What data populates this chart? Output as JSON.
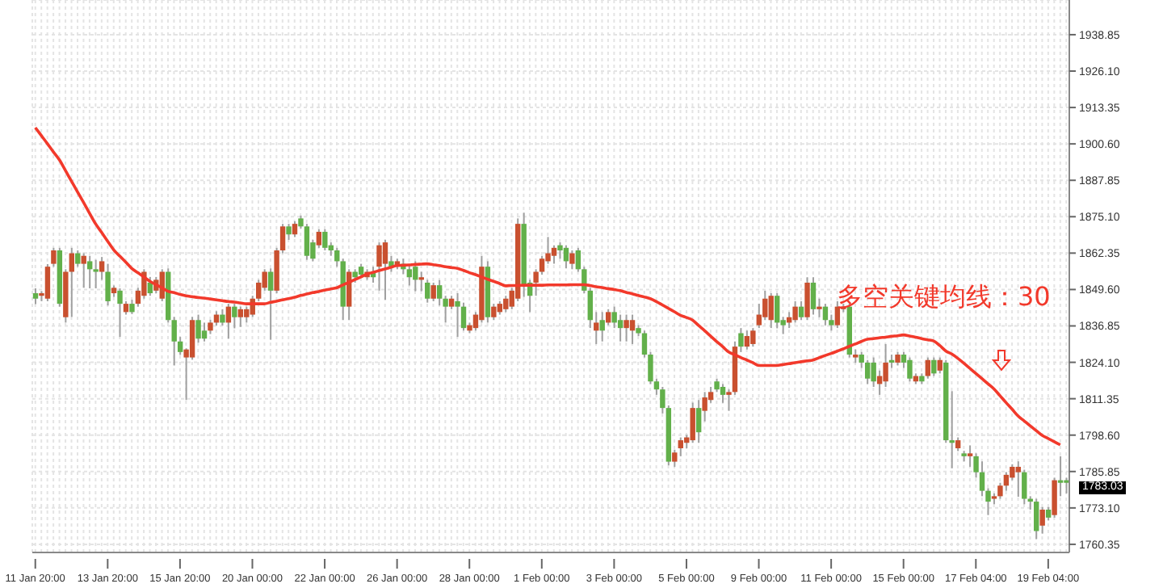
{
  "chart_data": {
    "type": "candlestick",
    "categories": [
      "11 Jan 20:00",
      null,
      null,
      null,
      null,
      null,
      null,
      null,
      null,
      null,
      null,
      null,
      "13 Jan 20:00",
      null,
      null,
      null,
      null,
      null,
      null,
      null,
      null,
      null,
      null,
      null,
      "15 Jan 20:00",
      null,
      null,
      null,
      null,
      null,
      null,
      null,
      null,
      null,
      null,
      null,
      "20 Jan 00:00",
      null,
      null,
      null,
      null,
      null,
      null,
      null,
      null,
      null,
      null,
      null,
      "22 Jan 00:00",
      null,
      null,
      null,
      null,
      null,
      null,
      null,
      null,
      null,
      null,
      null,
      "26 Jan 00:00",
      null,
      null,
      null,
      null,
      null,
      null,
      null,
      null,
      null,
      null,
      null,
      "28 Jan 00:00",
      null,
      null,
      null,
      null,
      null,
      null,
      null,
      null,
      null,
      null,
      null,
      "1 Feb 00:00",
      null,
      null,
      null,
      null,
      null,
      null,
      null,
      null,
      null,
      null,
      null,
      "3 Feb 00:00",
      null,
      null,
      null,
      null,
      null,
      null,
      null,
      null,
      null,
      null,
      null,
      "5 Feb 00:00",
      null,
      null,
      null,
      null,
      null,
      null,
      null,
      null,
      null,
      null,
      null,
      "9 Feb 00:00",
      null,
      null,
      null,
      null,
      null,
      null,
      null,
      null,
      null,
      null,
      null,
      "11 Feb 00:00",
      null,
      null,
      null,
      null,
      null,
      null,
      null,
      null,
      null,
      null,
      null,
      "15 Feb 00:00",
      null,
      null,
      null,
      null,
      null,
      null,
      null,
      null,
      null,
      null,
      null,
      "17 Feb 04:00",
      null,
      null,
      null,
      null,
      null,
      null,
      null,
      null,
      null,
      null,
      null,
      "19 Feb 04:00",
      null,
      null,
      null
    ],
    "ohlc": [
      [
        1848.3,
        1850,
        1844.5,
        1846.4
      ],
      [
        1847.4,
        1849,
        1845.5,
        1848.3
      ],
      [
        1846.4,
        1858.5,
        1845.5,
        1857.6
      ],
      [
        1858.6,
        1864.2,
        1857.6,
        1863.3
      ],
      [
        1863.3,
        1864.2,
        1843.6,
        1844.6
      ],
      [
        1839.9,
        1856.7,
        1838,
        1855.8
      ],
      [
        1855.8,
        1864.2,
        1840,
        1862.3
      ],
      [
        1862.3,
        1863.3,
        1857.6,
        1858.6
      ],
      [
        1858.6,
        1862.3,
        1850.2,
        1861.4
      ],
      [
        1859.5,
        1861.4,
        1850,
        1856.7
      ],
      [
        1856.7,
        1860,
        1850,
        1855.8
      ],
      [
        1855.8,
        1861,
        1853,
        1859.5
      ],
      [
        1855.8,
        1858.6,
        1844,
        1845.5
      ],
      [
        1848.3,
        1851,
        1847,
        1850.2
      ],
      [
        1849.2,
        1850,
        1833,
        1844.6
      ],
      [
        1841.7,
        1845.5,
        1840.8,
        1844.6
      ],
      [
        1844.6,
        1846,
        1841,
        1841.7
      ],
      [
        1844.6,
        1850.2,
        1843.6,
        1849.2
      ],
      [
        1847.4,
        1856.7,
        1846.4,
        1855.8
      ],
      [
        1852,
        1854,
        1847.4,
        1848.3
      ],
      [
        1849.2,
        1854,
        1848.3,
        1853
      ],
      [
        1846.4,
        1856.7,
        1845.5,
        1855.8
      ],
      [
        1855.8,
        1857,
        1838,
        1838.9
      ],
      [
        1838.9,
        1840,
        1823,
        1831.4
      ],
      [
        1831.4,
        1833,
        1826.7,
        1827.7
      ],
      [
        1825.8,
        1829,
        1810.9,
        1828.6
      ],
      [
        1825.8,
        1840,
        1825,
        1838.9
      ],
      [
        1838.9,
        1840.8,
        1831,
        1832.4
      ],
      [
        1835.2,
        1838,
        1831.4,
        1832.4
      ],
      [
        1835.2,
        1839,
        1834,
        1838
      ],
      [
        1838,
        1842,
        1837,
        1840.8
      ],
      [
        1840.8,
        1842.7,
        1837,
        1838
      ],
      [
        1838,
        1844.6,
        1832.4,
        1843.6
      ],
      [
        1843.6,
        1844.6,
        1836,
        1839.9
      ],
      [
        1839.9,
        1843.6,
        1836.5,
        1842.7
      ],
      [
        1839.9,
        1843.6,
        1838,
        1842.7
      ],
      [
        1840.8,
        1847.4,
        1840,
        1846.4
      ],
      [
        1846.4,
        1853,
        1845.5,
        1852
      ],
      [
        1850.2,
        1856.7,
        1849.2,
        1855.8
      ],
      [
        1855.8,
        1857,
        1832,
        1849.2
      ],
      [
        1849.2,
        1864.2,
        1848.3,
        1863.3
      ],
      [
        1863.3,
        1872.6,
        1862.3,
        1871.7
      ],
      [
        1871.7,
        1872.6,
        1867,
        1868.9
      ],
      [
        1868.9,
        1873.5,
        1868,
        1872.6
      ],
      [
        1874.5,
        1875.5,
        1871,
        1871.7
      ],
      [
        1871.7,
        1872.6,
        1860,
        1861.4
      ],
      [
        1866.1,
        1867,
        1859.5,
        1860.4
      ],
      [
        1865.1,
        1870.7,
        1864.2,
        1869.8
      ],
      [
        1869.8,
        1870.7,
        1863.3,
        1864.2
      ],
      [
        1865.1,
        1866.1,
        1861.4,
        1863.3
      ],
      [
        1863.3,
        1864.2,
        1857.6,
        1859.5
      ],
      [
        1859.5,
        1860.4,
        1838.9,
        1843.6
      ],
      [
        1843.6,
        1856.7,
        1838.9,
        1855.8
      ],
      [
        1855.8,
        1856.7,
        1852,
        1853.9
      ],
      [
        1857.6,
        1858.6,
        1853.9,
        1854.8
      ],
      [
        1853.9,
        1856.7,
        1853,
        1855.8
      ],
      [
        1855.8,
        1857.6,
        1852,
        1853.9
      ],
      [
        1857.6,
        1866.1,
        1849.2,
        1865.1
      ],
      [
        1858.6,
        1867,
        1846,
        1866.1
      ],
      [
        1859.5,
        1861.4,
        1855.8,
        1857.6
      ],
      [
        1857.6,
        1860.4,
        1856.7,
        1859.5
      ],
      [
        1858.6,
        1860.4,
        1855,
        1856.7
      ],
      [
        1856.7,
        1858,
        1851,
        1853.9
      ],
      [
        1857.6,
        1859.5,
        1849,
        1853
      ],
      [
        1853,
        1855.8,
        1849,
        1853.9
      ],
      [
        1852,
        1853,
        1845,
        1846.4
      ],
      [
        1846.4,
        1852,
        1845.5,
        1851.1
      ],
      [
        1851.1,
        1852.9,
        1844,
        1846.4
      ],
      [
        1846.4,
        1847.4,
        1838,
        1843.6
      ],
      [
        1843.6,
        1847.4,
        1842.7,
        1846.4
      ],
      [
        1845.5,
        1848.3,
        1833,
        1843.6
      ],
      [
        1843.6,
        1845,
        1835.2,
        1836.1
      ],
      [
        1835.2,
        1838,
        1834.3,
        1837.1
      ],
      [
        1836.1,
        1841.7,
        1835.2,
        1840.8
      ],
      [
        1838.9,
        1861.4,
        1838,
        1857.6
      ],
      [
        1857.6,
        1859.5,
        1838,
        1839.9
      ],
      [
        1839.9,
        1844.6,
        1838.9,
        1843.6
      ],
      [
        1841.7,
        1845.5,
        1840.8,
        1844.6
      ],
      [
        1842.7,
        1847.4,
        1841.7,
        1846.4
      ],
      [
        1843.6,
        1850.2,
        1842.7,
        1849.2
      ],
      [
        1846.4,
        1874.5,
        1845.5,
        1872.6
      ],
      [
        1872.6,
        1876.5,
        1847,
        1851.1
      ],
      [
        1852,
        1853,
        1841.7,
        1847.4
      ],
      [
        1852,
        1856.7,
        1847.4,
        1855.8
      ],
      [
        1855.8,
        1861.4,
        1854.8,
        1860.4
      ],
      [
        1859.5,
        1868,
        1858.6,
        1862.3
      ],
      [
        1861.4,
        1865.1,
        1858.6,
        1864.2
      ],
      [
        1865.1,
        1866.1,
        1860.4,
        1863.3
      ],
      [
        1864.2,
        1865.1,
        1857,
        1859.5
      ],
      [
        1858.6,
        1863.3,
        1856.7,
        1862.3
      ],
      [
        1863.3,
        1864.2,
        1855.8,
        1856.7
      ],
      [
        1856.7,
        1857.6,
        1848.3,
        1849.2
      ],
      [
        1849.2,
        1850.2,
        1836.1,
        1838.9
      ],
      [
        1835.2,
        1841.7,
        1830.5,
        1838
      ],
      [
        1838.9,
        1841.7,
        1831.4,
        1835.2
      ],
      [
        1838,
        1842.7,
        1837.1,
        1841.7
      ],
      [
        1841.7,
        1843.6,
        1836.1,
        1838
      ],
      [
        1838.9,
        1840.8,
        1831.4,
        1836.1
      ],
      [
        1836.1,
        1840.8,
        1831.4,
        1838.9
      ],
      [
        1835.2,
        1840.8,
        1830.5,
        1838.9
      ],
      [
        1836.1,
        1837.1,
        1833.3,
        1834.3
      ],
      [
        1834.3,
        1835.2,
        1825.8,
        1826.8
      ],
      [
        1826.8,
        1827.7,
        1816.5,
        1817.4
      ],
      [
        1817.4,
        1818.4,
        1812.7,
        1814.6
      ],
      [
        1814.6,
        1815.5,
        1806.2,
        1808.1
      ],
      [
        1808.1,
        1809,
        1788,
        1789.3
      ],
      [
        1789.3,
        1793.5,
        1787.5,
        1792.5
      ],
      [
        1794,
        1797.8,
        1791.2,
        1796.8
      ],
      [
        1795.9,
        1798.7,
        1794,
        1797.8
      ],
      [
        1796.8,
        1810,
        1795.9,
        1808.1
      ],
      [
        1808.1,
        1810.9,
        1795.9,
        1799.6
      ],
      [
        1807.1,
        1813.7,
        1803.4,
        1811.8
      ],
      [
        1810.9,
        1815.5,
        1809.9,
        1813.7
      ],
      [
        1817.4,
        1818.4,
        1813.7,
        1814.6
      ],
      [
        1815.5,
        1816.5,
        1809.9,
        1812.7
      ],
      [
        1812.7,
        1814.6,
        1807.1,
        1813.7
      ],
      [
        1813.7,
        1831.4,
        1812.7,
        1829.6
      ],
      [
        1834.3,
        1836.1,
        1827.7,
        1829.6
      ],
      [
        1829.6,
        1835.2,
        1828.6,
        1833.3
      ],
      [
        1830.5,
        1836.1,
        1829.6,
        1835.2
      ],
      [
        1837.1,
        1844.6,
        1836.1,
        1840.8
      ],
      [
        1839.9,
        1849.2,
        1838.9,
        1846.4
      ],
      [
        1838.9,
        1848.3,
        1836.1,
        1847.4
      ],
      [
        1847.4,
        1848.3,
        1836,
        1838
      ],
      [
        1838.9,
        1840,
        1834,
        1837.1
      ],
      [
        1838,
        1841.7,
        1836.1,
        1839.9
      ],
      [
        1838.9,
        1845.5,
        1838,
        1843.6
      ],
      [
        1843.6,
        1845.5,
        1838.9,
        1839.9
      ],
      [
        1839.9,
        1853.9,
        1838.9,
        1852
      ],
      [
        1852,
        1853.9,
        1840.8,
        1842.7
      ],
      [
        1842.7,
        1846.4,
        1839.9,
        1843.6
      ],
      [
        1843.6,
        1844.6,
        1837.1,
        1838.9
      ],
      [
        1838.9,
        1840.8,
        1835.2,
        1837.1
      ],
      [
        1837.1,
        1845.5,
        1836.1,
        1843.6
      ],
      [
        1842.7,
        1844.6,
        1841.7,
        1843.6
      ],
      [
        1843.6,
        1844.6,
        1825.8,
        1826.8
      ],
      [
        1825.8,
        1828.6,
        1823.9,
        1826.8
      ],
      [
        1826.8,
        1827.7,
        1822.1,
        1824
      ],
      [
        1824,
        1824.9,
        1816.5,
        1818.4
      ],
      [
        1824,
        1825.8,
        1815.5,
        1817.4
      ],
      [
        1816.5,
        1821.2,
        1812.7,
        1819.3
      ],
      [
        1817.4,
        1830.5,
        1815.5,
        1824
      ],
      [
        1824.9,
        1826.8,
        1822.1,
        1824
      ],
      [
        1824,
        1827.7,
        1823,
        1826.8
      ],
      [
        1826.8,
        1827.7,
        1822.1,
        1824
      ],
      [
        1824.9,
        1825.8,
        1817.4,
        1818.4
      ],
      [
        1817.4,
        1820.2,
        1816.5,
        1819.3
      ],
      [
        1819.3,
        1820.2,
        1816.5,
        1817.4
      ],
      [
        1819.3,
        1825.8,
        1818.4,
        1824.9
      ],
      [
        1824.9,
        1825.8,
        1819.3,
        1820.2
      ],
      [
        1821.2,
        1825.8,
        1820.2,
        1824.9
      ],
      [
        1824,
        1824.9,
        1795.9,
        1796.8
      ],
      [
        1796.8,
        1814,
        1787,
        1795.9
      ],
      [
        1794,
        1797.8,
        1793,
        1796.8
      ],
      [
        1792.2,
        1793.1,
        1789.4,
        1791.2
      ],
      [
        1791.2,
        1795,
        1787.5,
        1792.2
      ],
      [
        1791.2,
        1792.2,
        1783.7,
        1785.6
      ],
      [
        1785.6,
        1789.4,
        1777.2,
        1779.1
      ],
      [
        1779.1,
        1780,
        1770.6,
        1775.3
      ],
      [
        1776.3,
        1778.2,
        1774.4,
        1777.2
      ],
      [
        1777.2,
        1781.9,
        1776.3,
        1780.9
      ],
      [
        1780.9,
        1785.6,
        1779.1,
        1784.7
      ],
      [
        1783.7,
        1788.4,
        1782.8,
        1787.5
      ],
      [
        1785.6,
        1789.4,
        1777,
        1787.5
      ],
      [
        1785.6,
        1786.5,
        1774.4,
        1776.3
      ],
      [
        1776.3,
        1777.2,
        1772.5,
        1775.3
      ],
      [
        1775.3,
        1776.3,
        1762.2,
        1765
      ],
      [
        1766.9,
        1773.4,
        1764.1,
        1772.5
      ],
      [
        1772.5,
        1773.4,
        1768.7,
        1769.7
      ],
      [
        1770.6,
        1783.7,
        1769.7,
        1782.8
      ],
      [
        1782.8,
        1791.2,
        1777.2,
        1781.9
      ],
      [
        1782.8,
        1783.7,
        1778.2,
        1781.9
      ]
    ],
    "colors": [
      "#62b04a",
      "#c9502f",
      "#c9502f",
      "#c9502f",
      "#62b04a",
      "#c9502f",
      "#c9502f",
      "#62b04a",
      "#c9502f",
      "#62b04a",
      "#62b04a",
      "#c9502f",
      "#62b04a",
      "#c9502f",
      "#62b04a",
      "#c9502f",
      "#62b04a",
      "#c9502f",
      "#c9502f",
      "#62b04a",
      "#c9502f",
      "#c9502f",
      "#62b04a",
      "#62b04a",
      "#62b04a",
      "#c9502f",
      "#c9502f",
      "#62b04a",
      "#62b04a",
      "#c9502f",
      "#c9502f",
      "#62b04a",
      "#c9502f",
      "#62b04a",
      "#c9502f",
      "#c9502f",
      "#c9502f",
      "#c9502f",
      "#c9502f",
      "#62b04a",
      "#c9502f",
      "#c9502f",
      "#62b04a",
      "#c9502f",
      "#62b04a",
      "#62b04a",
      "#62b04a",
      "#c9502f",
      "#62b04a",
      "#62b04a",
      "#62b04a",
      "#62b04a",
      "#c9502f",
      "#62b04a",
      "#62b04a",
      "#c9502f",
      "#62b04a",
      "#c9502f",
      "#c9502f",
      "#62b04a",
      "#c9502f",
      "#62b04a",
      "#62b04a",
      "#62b04a",
      "#c9502f",
      "#62b04a",
      "#c9502f",
      "#62b04a",
      "#62b04a",
      "#c9502f",
      "#62b04a",
      "#62b04a",
      "#c9502f",
      "#c9502f",
      "#c9502f",
      "#62b04a",
      "#c9502f",
      "#c9502f",
      "#c9502f",
      "#c9502f",
      "#c9502f",
      "#62b04a",
      "#62b04a",
      "#c9502f",
      "#c9502f",
      "#c9502f",
      "#c9502f",
      "#62b04a",
      "#62b04a",
      "#c9502f",
      "#62b04a",
      "#62b04a",
      "#62b04a",
      "#c9502f",
      "#62b04a",
      "#c9502f",
      "#62b04a",
      "#62b04a",
      "#c9502f",
      "#c9502f",
      "#62b04a",
      "#62b04a",
      "#62b04a",
      "#62b04a",
      "#62b04a",
      "#62b04a",
      "#c9502f",
      "#c9502f",
      "#c9502f",
      "#c9502f",
      "#62b04a",
      "#c9502f",
      "#c9502f",
      "#62b04a",
      "#62b04a",
      "#c9502f",
      "#c9502f",
      "#62b04a",
      "#c9502f",
      "#c9502f",
      "#c9502f",
      "#c9502f",
      "#c9502f",
      "#62b04a",
      "#62b04a",
      "#c9502f",
      "#c9502f",
      "#62b04a",
      "#c9502f",
      "#62b04a",
      "#c9502f",
      "#62b04a",
      "#62b04a",
      "#c9502f",
      "#c9502f",
      "#62b04a",
      "#c9502f",
      "#62b04a",
      "#62b04a",
      "#62b04a",
      "#c9502f",
      "#c9502f",
      "#62b04a",
      "#c9502f",
      "#62b04a",
      "#62b04a",
      "#c9502f",
      "#62b04a",
      "#c9502f",
      "#62b04a",
      "#c9502f",
      "#62b04a",
      "#62b04a",
      "#c9502f",
      "#62b04a",
      "#c9502f",
      "#62b04a",
      "#62b04a",
      "#62b04a",
      "#c9502f",
      "#c9502f",
      "#c9502f",
      "#c9502f",
      "#c9502f",
      "#62b04a",
      "#62b04a",
      "#62b04a",
      "#c9502f",
      "#62b04a",
      "#c9502f",
      "#62b04a",
      "#62b04a"
    ],
    "series": [
      {
        "type": "line",
        "color": "#f2392b",
        "values": [
          1906.3,
          1903.5,
          1900.7,
          1897.8,
          1895.0,
          1891.3,
          1887.5,
          1883.8,
          1880.1,
          1876.3,
          1872.6,
          1869.6,
          1866.5,
          1863.5,
          1861.3,
          1859.2,
          1857.0,
          1855.5,
          1854.0,
          1852.5,
          1851.3,
          1850.2,
          1849.0,
          1848.5,
          1847.9,
          1847.4,
          1847.1,
          1846.8,
          1846.6,
          1846.3,
          1846.0,
          1845.7,
          1845.4,
          1845.2,
          1844.9,
          1844.6,
          1844.6,
          1844.6,
          1844.6,
          1845.1,
          1845.5,
          1846.0,
          1846.4,
          1846.9,
          1847.5,
          1848.0,
          1848.5,
          1848.9,
          1849.4,
          1849.8,
          1850.2,
          1851.2,
          1852.1,
          1853.1,
          1854.0,
          1855.0,
          1855.6,
          1856.2,
          1856.8,
          1857.4,
          1858.0,
          1858.1,
          1858.2,
          1858.4,
          1858.5,
          1858.6,
          1858.3,
          1858.0,
          1857.6,
          1857.3,
          1857.0,
          1856.3,
          1855.5,
          1854.8,
          1854.0,
          1853.2,
          1852.5,
          1851.7,
          1850.9,
          1851.0,
          1851.0,
          1851.1,
          1851.1,
          1851.1,
          1851.1,
          1851.2,
          1851.2,
          1851.2,
          1851.2,
          1851.3,
          1851.3,
          1851.3,
          1851.0,
          1850.6,
          1850.3,
          1849.9,
          1849.6,
          1849.2,
          1848.6,
          1848.1,
          1847.5,
          1847.0,
          1846.4,
          1845.4,
          1844.2,
          1843.0,
          1841.8,
          1840.6,
          1839.8,
          1838.9,
          1837.0,
          1835.2,
          1833.3,
          1831.4,
          1829.6,
          1827.7,
          1826.8,
          1825.8,
          1824.9,
          1824.0,
          1823.0,
          1823.0,
          1823.0,
          1823.0,
          1823.3,
          1823.6,
          1824.0,
          1824.3,
          1824.6,
          1824.9,
          1825.7,
          1826.5,
          1827.2,
          1828.0,
          1828.8,
          1829.7,
          1830.5,
          1831.4,
          1832.2,
          1832.4,
          1832.7,
          1832.9,
          1833.2,
          1833.4,
          1833.7,
          1833.3,
          1832.9,
          1832.4,
          1832.0,
          1831.6,
          1830.0,
          1828.1,
          1827.0,
          1825.5,
          1823.8,
          1822.0,
          1820.2,
          1818.4,
          1816.6,
          1814.8,
          1812.4,
          1810.0,
          1807.7,
          1805.3,
          1803.6,
          1801.9,
          1800.2,
          1798.5,
          1797.4,
          1796.3,
          1795.2,
          null
        ]
      }
    ],
    "ylim": [
      1757.5,
      1951
    ],
    "yticks": [
      1760.35,
      {
        "value": 1773.1,
        "label": "1773.10"
      },
      1785.85,
      {
        "value": 1798.6,
        "label": "1798.60"
      },
      1811.35,
      {
        "value": 1824.1,
        "label": "1824.10"
      },
      1836.85,
      {
        "value": 1849.6,
        "label": "1849.60"
      },
      1862.35,
      {
        "value": 1875.1,
        "label": "1875.10"
      },
      1887.85,
      {
        "value": 1900.6,
        "label": "1900.60"
      },
      1913.35,
      {
        "value": 1926.1,
        "label": "1926.10"
      },
      1938.85
    ],
    "grid": true,
    "annotations": [
      "多空关键均线：30",
      "1783.03"
    ]
  }
}
